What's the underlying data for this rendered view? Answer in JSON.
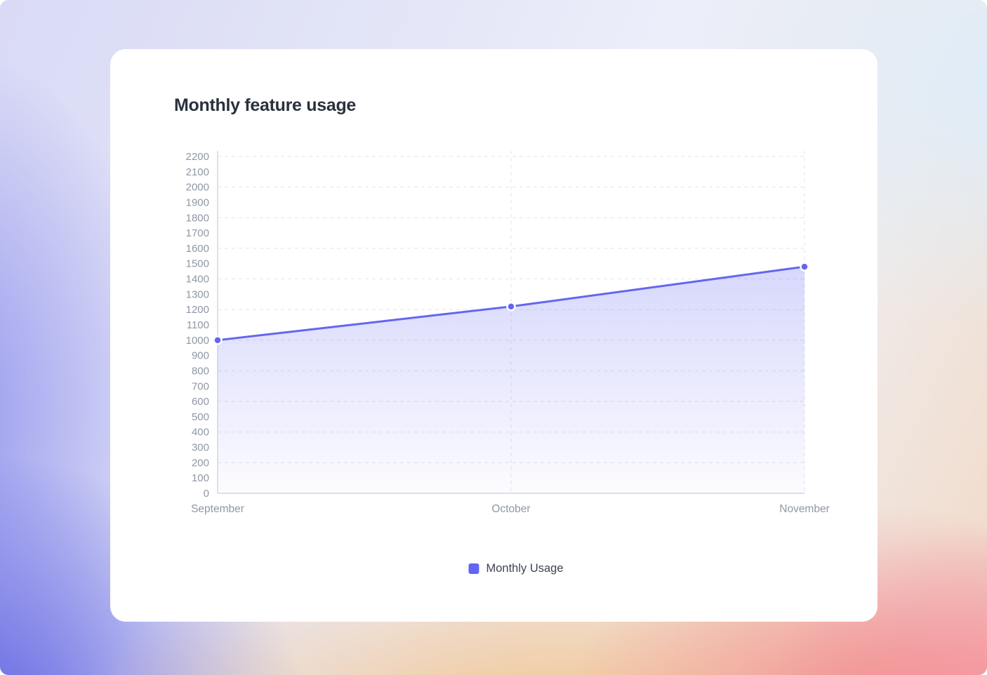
{
  "card": {
    "title": "Monthly feature usage"
  },
  "legend": {
    "label": "Monthly Usage"
  },
  "chart_data": {
    "type": "area",
    "title": "Monthly feature usage",
    "categories": [
      "September",
      "October",
      "November"
    ],
    "series": [
      {
        "name": "Monthly Usage",
        "values": [
          1000,
          1220,
          1480
        ]
      }
    ],
    "xlabel": "",
    "ylabel": "",
    "ylim": [
      0,
      2200
    ],
    "y_tick_step": 100,
    "y_ticks": [
      0,
      100,
      200,
      300,
      400,
      500,
      600,
      700,
      800,
      900,
      1000,
      1100,
      1200,
      1300,
      1400,
      1500,
      1600,
      1700,
      1800,
      1900,
      2000,
      2100,
      2200
    ],
    "grid": "dashed",
    "grid_step": 200,
    "legend_position": "bottom",
    "colors": {
      "line": "#6366f1",
      "point_fill": "#6366f1",
      "point_border": "#ffffff",
      "area_top": "rgba(99,102,241,0.26)",
      "area_bottom": "rgba(99,102,241,0.02)",
      "grid_line": "#e2e4ee",
      "axis_line": "#d5d8e2",
      "tick_text": "#8f97a6",
      "title_text": "#2a313d",
      "legend_text": "#3d4351"
    }
  }
}
